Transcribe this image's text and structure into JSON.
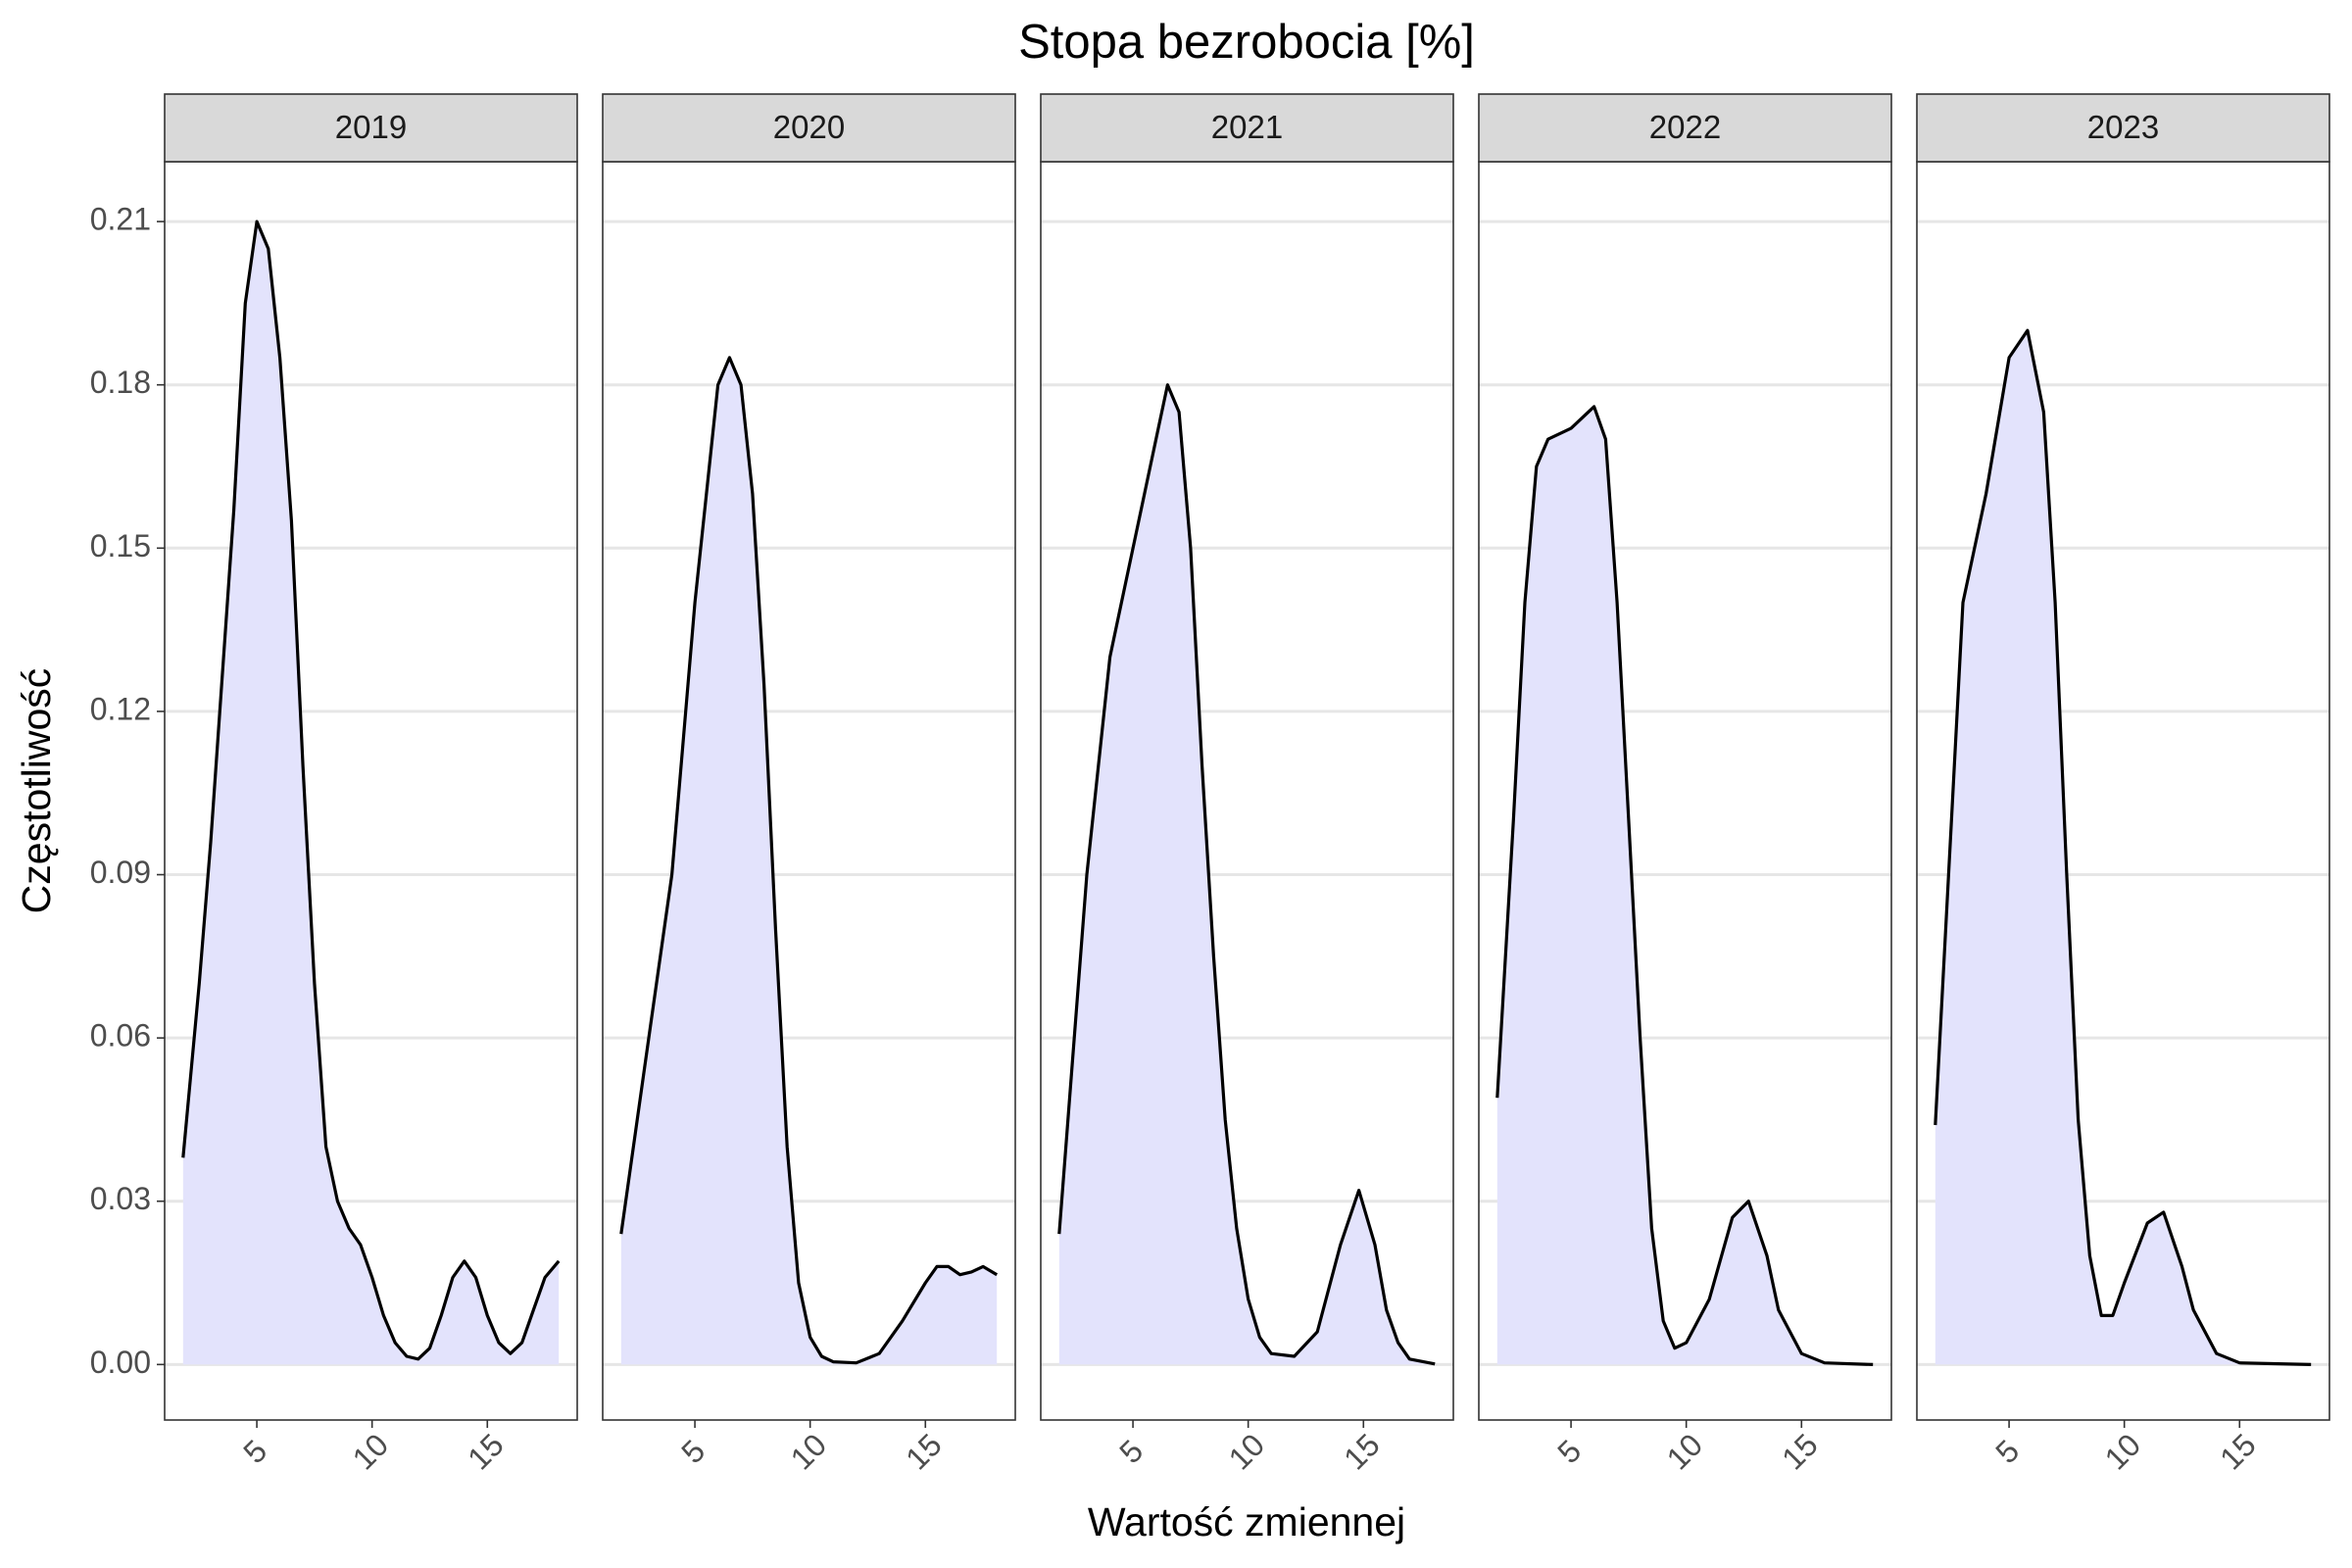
{
  "chart_data": {
    "type": "density",
    "title": "Stopa bezrobocia [%]",
    "x_label": "Wartość zmiennej",
    "y_label": "Częstotliwość",
    "fill_color": "#e3e3fc",
    "line_color": "#000000",
    "grid": true,
    "xlim": [
      1.0,
      18.9
    ],
    "ylim": [
      -0.0102,
      0.221
    ],
    "xticks": [
      5,
      10,
      15
    ],
    "yticks": [
      {
        "value": 0,
        "label": "0.00"
      },
      0.03,
      0.06,
      0.09,
      0.12,
      0.15,
      0.18,
      0.21
    ],
    "panels": [
      {
        "name": "2019",
        "x": [
          1.8,
          2.5,
          3,
          4,
          4.5,
          5,
          5.5,
          6,
          6.5,
          7,
          7.5,
          8,
          8.5,
          9,
          9.5,
          10,
          10.5,
          11,
          11.5,
          12,
          12.5,
          13,
          13.5,
          14,
          14.5,
          15,
          15.5,
          16,
          16.5,
          17,
          17.5,
          18.1
        ],
        "values": [
          0.038,
          0.07,
          0.096,
          0.157,
          0.195,
          0.21,
          0.205,
          0.185,
          0.155,
          0.11,
          0.07,
          0.04,
          0.03,
          0.025,
          0.022,
          0.016,
          0.009,
          0.004,
          0.0015,
          0.001,
          0.003,
          0.009,
          0.016,
          0.019,
          0.016,
          0.009,
          0.004,
          0.002,
          0.004,
          0.01,
          0.016,
          0.019
        ]
      },
      {
        "name": "2020",
        "x": [
          1.8,
          3,
          4,
          5,
          6,
          6.5,
          7,
          7.5,
          8,
          8.5,
          9,
          9.5,
          10,
          10.5,
          11,
          12,
          13,
          14,
          15,
          15.5,
          16,
          16.5,
          17,
          17.5,
          18.1
        ],
        "values": [
          0.024,
          0.06,
          0.09,
          0.14,
          0.18,
          0.185,
          0.18,
          0.16,
          0.125,
          0.08,
          0.04,
          0.015,
          0.005,
          0.0015,
          0.0005,
          0.0003,
          0.002,
          0.008,
          0.015,
          0.018,
          0.018,
          0.0165,
          0.017,
          0.018,
          0.0165
        ]
      },
      {
        "name": "2021",
        "x": [
          1.8,
          3,
          4,
          5,
          6,
          6.5,
          7,
          7.5,
          8,
          8.5,
          9,
          9.5,
          10,
          10.5,
          11,
          12,
          13,
          14,
          14.8,
          15.5,
          16,
          16.5,
          17,
          18.1
        ],
        "values": [
          0.024,
          0.09,
          0.13,
          0.15,
          0.17,
          0.18,
          0.175,
          0.15,
          0.11,
          0.075,
          0.045,
          0.025,
          0.012,
          0.005,
          0.002,
          0.0015,
          0.006,
          0.022,
          0.032,
          0.022,
          0.01,
          0.004,
          0.001,
          0.0001
        ]
      },
      {
        "name": "2022",
        "x": [
          1.8,
          2.5,
          3,
          3.5,
          4,
          5,
          6,
          6.5,
          7,
          7.5,
          8,
          8.5,
          9,
          9.5,
          10,
          11,
          12,
          12.7,
          13.5,
          14,
          15,
          16,
          18.1
        ],
        "values": [
          0.049,
          0.1,
          0.14,
          0.165,
          0.17,
          0.172,
          0.176,
          0.17,
          0.14,
          0.1,
          0.06,
          0.025,
          0.008,
          0.003,
          0.004,
          0.012,
          0.027,
          0.03,
          0.02,
          0.01,
          0.002,
          0.0003,
          0
        ]
      },
      {
        "name": "2023",
        "x": [
          1.8,
          2.5,
          3,
          4,
          5,
          5.8,
          6.5,
          7,
          7.5,
          8,
          8.5,
          9,
          9.5,
          10,
          11,
          11.7,
          12.5,
          13,
          14,
          15,
          18.1
        ],
        "values": [
          0.044,
          0.1,
          0.14,
          0.16,
          0.185,
          0.19,
          0.175,
          0.14,
          0.09,
          0.045,
          0.02,
          0.009,
          0.009,
          0.015,
          0.026,
          0.028,
          0.018,
          0.01,
          0.002,
          0.0003,
          0
        ]
      }
    ]
  }
}
